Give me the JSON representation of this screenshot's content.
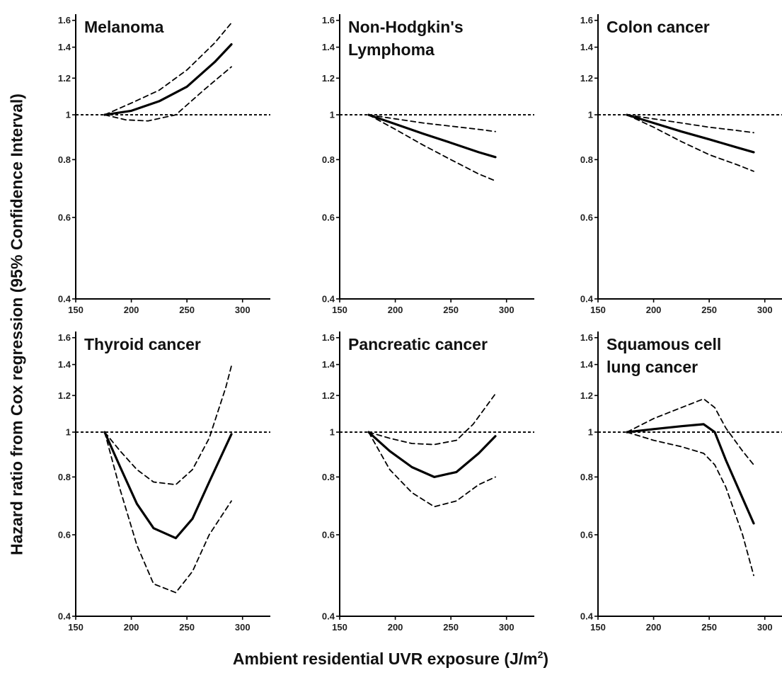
{
  "figure": {
    "ylabel": "Hazard ratio from Cox regression (95% Confidence Interval)",
    "xlabel_main": "Ambient residential UVR exposure (J/m",
    "xlabel_sup": "2",
    "xlabel_end": ")"
  },
  "chart_data": [
    {
      "type": "line",
      "title_lines": [
        "Melanoma"
      ],
      "xlim": [
        150,
        325
      ],
      "ylim": [
        0.4,
        1.65
      ],
      "yscale": "log",
      "xticks": [
        150,
        200,
        250,
        300
      ],
      "yticks": [
        0.4,
        0.6,
        0.8,
        1,
        1.2,
        1.4,
        1.6
      ],
      "reference_line": 1,
      "series": [
        {
          "role": "estimate",
          "x": [
            176,
            200,
            225,
            250,
            275,
            290
          ],
          "y": [
            1.0,
            1.02,
            1.07,
            1.15,
            1.3,
            1.42
          ]
        },
        {
          "role": "lower",
          "x": [
            176,
            195,
            215,
            240,
            265,
            290
          ],
          "y": [
            1.0,
            0.975,
            0.97,
            1.0,
            1.13,
            1.27
          ]
        },
        {
          "role": "upper",
          "x": [
            176,
            200,
            225,
            250,
            275,
            290
          ],
          "y": [
            1.0,
            1.06,
            1.13,
            1.25,
            1.43,
            1.58
          ]
        }
      ]
    },
    {
      "type": "line",
      "title_lines": [
        "Non-Hodgkin's",
        "Lymphoma"
      ],
      "xlim": [
        150,
        325
      ],
      "ylim": [
        0.4,
        1.65
      ],
      "yscale": "log",
      "xticks": [
        150,
        200,
        250,
        300
      ],
      "yticks": [
        0.4,
        0.6,
        0.8,
        1,
        1.2,
        1.4,
        1.6
      ],
      "reference_line": 1,
      "series": [
        {
          "role": "estimate",
          "x": [
            176,
            200,
            225,
            250,
            275,
            290
          ],
          "y": [
            1.0,
            0.955,
            0.91,
            0.87,
            0.83,
            0.81
          ]
        },
        {
          "role": "lower",
          "x": [
            176,
            200,
            225,
            250,
            275,
            290
          ],
          "y": [
            1.0,
            0.93,
            0.86,
            0.8,
            0.745,
            0.72
          ]
        },
        {
          "role": "upper",
          "x": [
            176,
            200,
            225,
            250,
            275,
            290
          ],
          "y": [
            1.0,
            0.98,
            0.96,
            0.945,
            0.93,
            0.92
          ]
        }
      ]
    },
    {
      "type": "line",
      "title_lines": [
        "Colon cancer"
      ],
      "xlim": [
        150,
        325
      ],
      "ylim": [
        0.4,
        1.65
      ],
      "yscale": "log",
      "xticks": [
        150,
        200,
        250,
        300
      ],
      "yticks": [
        0.4,
        0.6,
        0.8,
        1,
        1.2,
        1.4,
        1.6
      ],
      "reference_line": 1,
      "series": [
        {
          "role": "estimate",
          "x": [
            176,
            200,
            225,
            250,
            275,
            290
          ],
          "y": [
            1.0,
            0.96,
            0.92,
            0.885,
            0.85,
            0.83
          ]
        },
        {
          "role": "lower",
          "x": [
            176,
            200,
            225,
            250,
            275,
            290
          ],
          "y": [
            1.0,
            0.94,
            0.875,
            0.82,
            0.78,
            0.755
          ]
        },
        {
          "role": "upper",
          "x": [
            176,
            200,
            225,
            250,
            275,
            290
          ],
          "y": [
            1.0,
            0.98,
            0.96,
            0.94,
            0.925,
            0.915
          ]
        }
      ]
    },
    {
      "type": "line",
      "title_lines": [
        "Thyroid cancer"
      ],
      "xlim": [
        150,
        325
      ],
      "ylim": [
        0.4,
        1.65
      ],
      "yscale": "log",
      "xticks": [
        150,
        200,
        250,
        300
      ],
      "yticks": [
        0.4,
        0.6,
        0.8,
        1,
        1.2,
        1.4,
        1.6
      ],
      "reference_line": 1,
      "series": [
        {
          "role": "estimate",
          "x": [
            176,
            190,
            205,
            220,
            240,
            255,
            270,
            290
          ],
          "y": [
            1.0,
            0.84,
            0.7,
            0.62,
            0.59,
            0.65,
            0.78,
            0.99
          ]
        },
        {
          "role": "lower",
          "x": [
            176,
            190,
            205,
            220,
            240,
            255,
            270,
            290
          ],
          "y": [
            1.0,
            0.75,
            0.57,
            0.47,
            0.45,
            0.5,
            0.6,
            0.71
          ]
        },
        {
          "role": "upper",
          "x": [
            176,
            190,
            205,
            220,
            240,
            255,
            270,
            285,
            290
          ],
          "y": [
            1.0,
            0.91,
            0.83,
            0.78,
            0.77,
            0.83,
            0.97,
            1.25,
            1.39
          ]
        }
      ]
    },
    {
      "type": "line",
      "title_lines": [
        "Pancreatic cancer"
      ],
      "xlim": [
        150,
        325
      ],
      "ylim": [
        0.4,
        1.65
      ],
      "yscale": "log",
      "xticks": [
        150,
        200,
        250,
        300
      ],
      "yticks": [
        0.4,
        0.6,
        0.8,
        1,
        1.2,
        1.4,
        1.6
      ],
      "reference_line": 1,
      "series": [
        {
          "role": "estimate",
          "x": [
            176,
            195,
            215,
            235,
            255,
            275,
            290
          ],
          "y": [
            1.0,
            0.91,
            0.84,
            0.8,
            0.82,
            0.9,
            0.98
          ]
        },
        {
          "role": "lower",
          "x": [
            176,
            195,
            215,
            235,
            255,
            275,
            290
          ],
          "y": [
            1.0,
            0.83,
            0.74,
            0.69,
            0.71,
            0.77,
            0.8
          ]
        },
        {
          "role": "upper",
          "x": [
            176,
            195,
            215,
            235,
            255,
            270,
            290
          ],
          "y": [
            1.0,
            0.97,
            0.945,
            0.94,
            0.96,
            1.04,
            1.21
          ]
        }
      ]
    },
    {
      "type": "line",
      "title_lines": [
        "Squamous cell",
        "lung cancer"
      ],
      "xlim": [
        150,
        325
      ],
      "ylim": [
        0.4,
        1.65
      ],
      "yscale": "log",
      "xticks": [
        150,
        200,
        250,
        300
      ],
      "yticks": [
        0.4,
        0.6,
        0.8,
        1,
        1.2,
        1.4,
        1.6
      ],
      "reference_line": 1,
      "series": [
        {
          "role": "estimate",
          "x": [
            176,
            200,
            225,
            245,
            255,
            265,
            280,
            290
          ],
          "y": [
            1.0,
            1.015,
            1.03,
            1.04,
            1.0,
            0.87,
            0.72,
            0.635
          ]
        },
        {
          "role": "lower",
          "x": [
            176,
            200,
            225,
            245,
            255,
            265,
            280,
            290
          ],
          "y": [
            1.0,
            0.96,
            0.93,
            0.9,
            0.85,
            0.76,
            0.6,
            0.49
          ]
        },
        {
          "role": "upper",
          "x": [
            176,
            200,
            225,
            245,
            255,
            265,
            280,
            290
          ],
          "y": [
            1.0,
            1.07,
            1.13,
            1.18,
            1.13,
            1.02,
            0.91,
            0.85
          ]
        }
      ]
    }
  ]
}
